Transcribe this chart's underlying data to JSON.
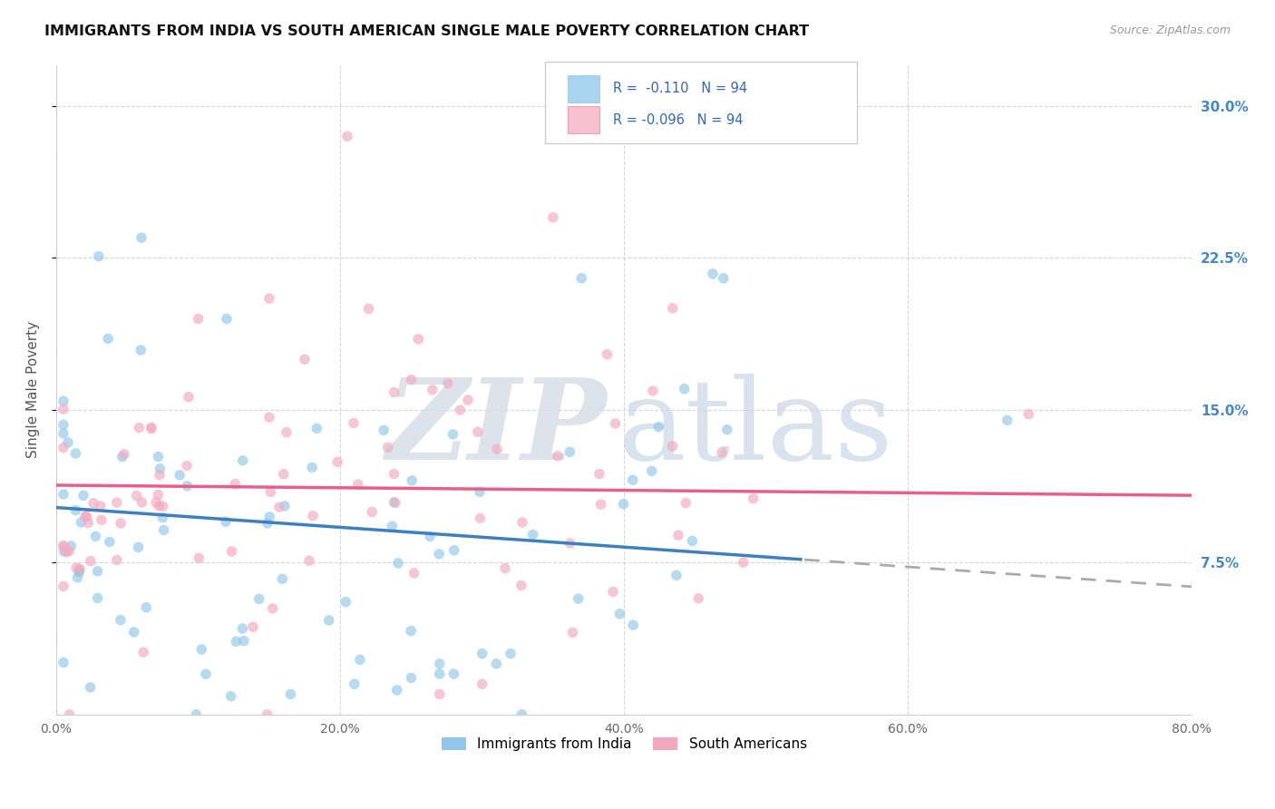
{
  "title": "IMMIGRANTS FROM INDIA VS SOUTH AMERICAN SINGLE MALE POVERTY CORRELATION CHART",
  "source": "Source: ZipAtlas.com",
  "ylabel": "Single Male Poverty",
  "ytick_labels": [
    "7.5%",
    "15.0%",
    "22.5%",
    "30.0%"
  ],
  "ytick_values": [
    0.075,
    0.15,
    0.225,
    0.3
  ],
  "xtick_labels": [
    "0.0%",
    "20.0%",
    "40.0%",
    "60.0%",
    "80.0%"
  ],
  "xtick_values": [
    0.0,
    0.2,
    0.4,
    0.6,
    0.8
  ],
  "xlim": [
    0.0,
    0.8
  ],
  "ylim": [
    0.0,
    0.32
  ],
  "legend_text1": "R =  -0.110   N = 94",
  "legend_text2": "R = -0.096   N = 94",
  "legend_label1": "Immigrants from India",
  "legend_label2": "South Americans",
  "color_india": "#8fc8e8",
  "color_south": "#f4a8be",
  "color_india_line": "#3d7fbf",
  "color_south_line": "#e8608a",
  "color_india_legend": "#a8d4ef",
  "color_south_legend": "#f9c0d0",
  "watermark_zip_color": "#d0d8e8",
  "watermark_atlas_color": "#c0d4e8",
  "india_line_x_start": 0.0,
  "india_line_x_solid_end": 0.525,
  "india_line_x_end": 0.8,
  "india_line_y_start": 0.102,
  "india_line_y_end": 0.063,
  "south_line_y_start": 0.113,
  "south_line_y_end": 0.108,
  "grid_color": "#cccccc",
  "right_tick_color": "#4488cc",
  "scatter_size": 70,
  "scatter_alpha": 0.65
}
